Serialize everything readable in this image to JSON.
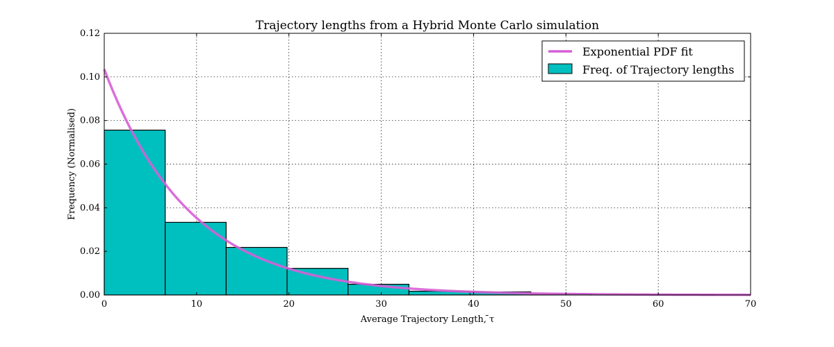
{
  "chart_data": {
    "type": "bar",
    "title": "Trajectory lengths from a Hybrid Monte Carlo simulation",
    "xlabel": "Average Trajectory Length, ̄τ",
    "ylabel": "Frequency (Normalised)",
    "xlim": [
      0,
      70
    ],
    "ylim": [
      0,
      0.12
    ],
    "xticks": [
      0,
      10,
      20,
      30,
      40,
      50,
      60,
      70
    ],
    "xtick_labels": [
      "0",
      "10",
      "20",
      "30",
      "40",
      "50",
      "60",
      "70"
    ],
    "yticks": [
      0,
      0.02,
      0.04,
      0.06,
      0.08,
      0.1,
      0.12
    ],
    "ytick_labels": [
      "0.00",
      "0.02",
      "0.04",
      "0.06",
      "0.08",
      "0.10",
      "0.12"
    ],
    "grid": true,
    "legend_position": "top-right",
    "histogram": {
      "name": "Freq. of Trajectory lengths",
      "color": "#00bfbf",
      "bin_edges": [
        0,
        6.6,
        13.2,
        19.8,
        26.4,
        33.0,
        39.6,
        46.2,
        52.8,
        59.4,
        66.0
      ],
      "values": [
        0.0756,
        0.0333,
        0.0218,
        0.0122,
        0.0049,
        0.0017,
        0.0014,
        0.0004,
        0.0001,
        0.0001
      ]
    },
    "fit": {
      "name": "Exponential PDF fit",
      "color": "#d65fd6",
      "amplitude": 0.1035,
      "decay_scale": 9.3
    }
  }
}
